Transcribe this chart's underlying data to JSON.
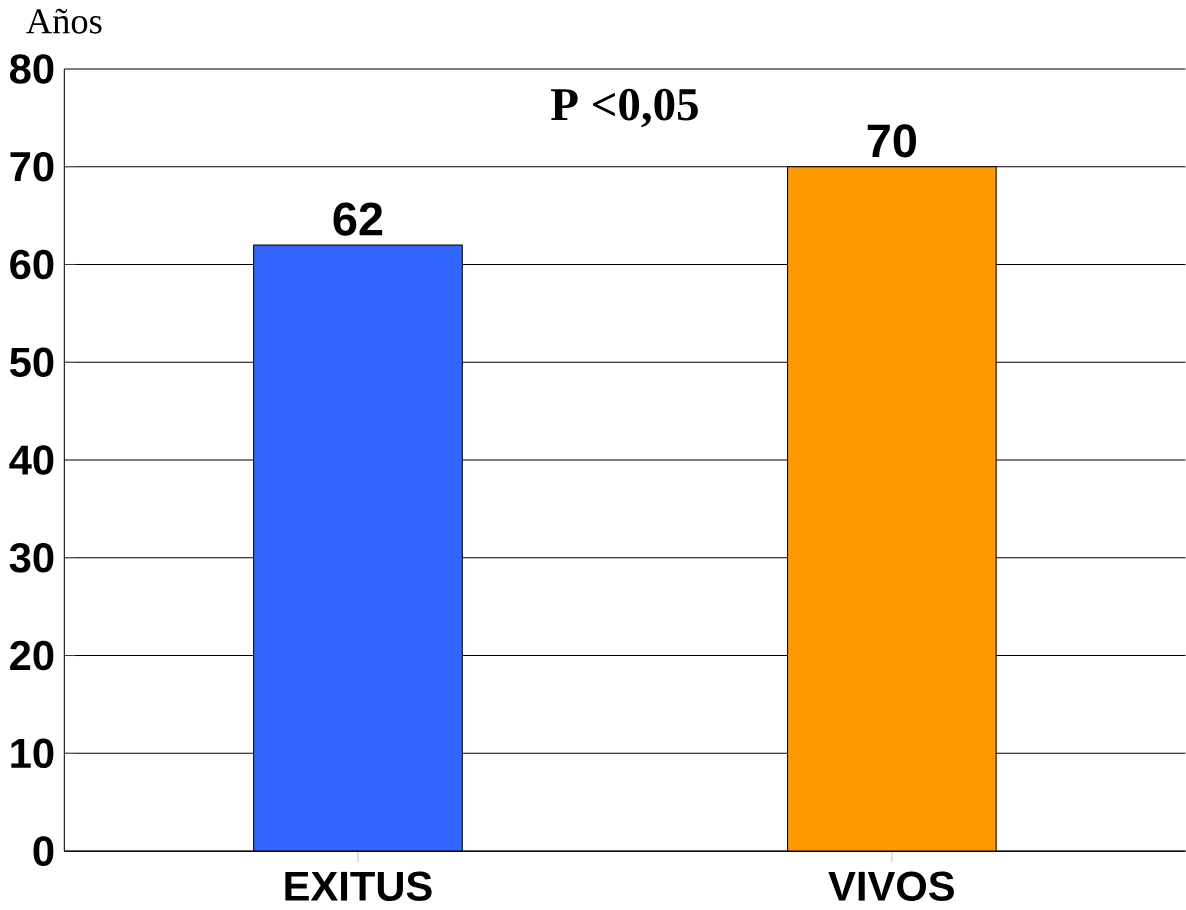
{
  "chart_data": {
    "type": "bar",
    "ylabel": "Años",
    "categories": [
      "EXITUS",
      "VIVOS"
    ],
    "values": [
      62,
      70
    ],
    "colors": [
      "#3366ff",
      "#ff9900"
    ],
    "ylim": [
      0,
      80
    ],
    "yticks": [
      0,
      10,
      20,
      30,
      40,
      50,
      60,
      70,
      80
    ],
    "grid": "y",
    "data_labels": true,
    "annotations": [
      "P <0,05"
    ]
  }
}
